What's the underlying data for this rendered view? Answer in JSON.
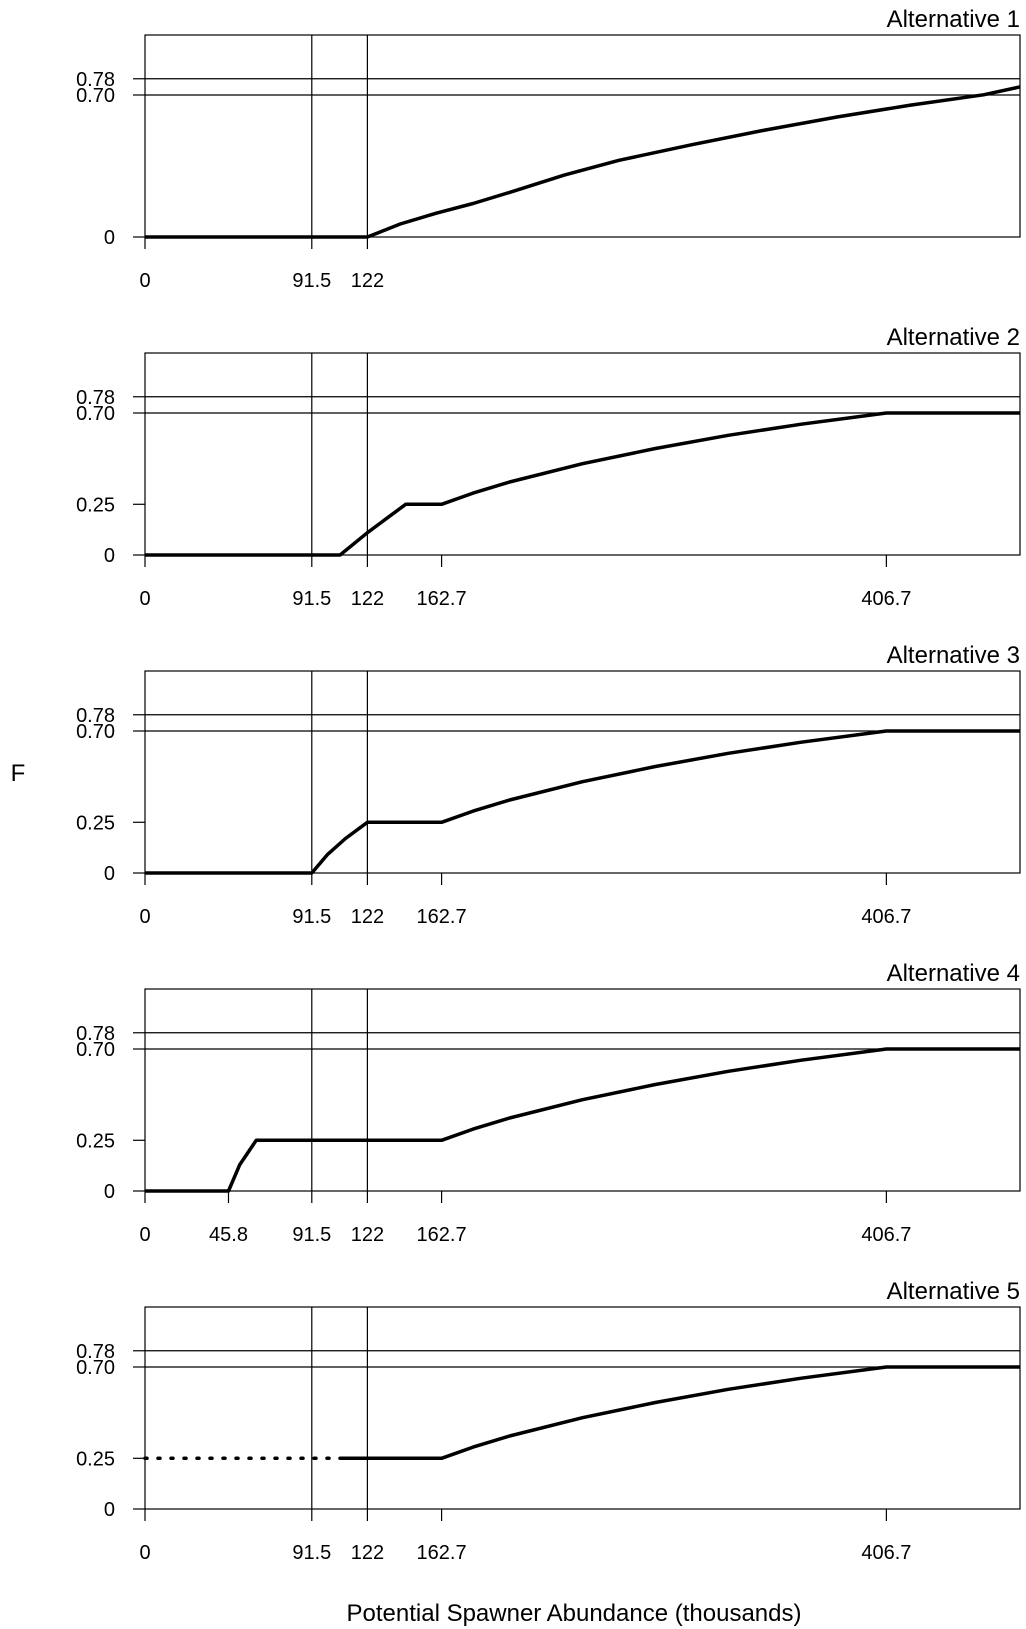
{
  "y_axis_label": "F",
  "x_axis_label": "Potential Spawner Abundance (thousands)",
  "chart_data": [
    {
      "type": "line",
      "title": "Alternative 1",
      "xlabel": "Potential Spawner Abundance (thousands)",
      "ylabel": "F",
      "xlim": [
        0,
        480
      ],
      "ylim": [
        0,
        0.8
      ],
      "x_ticks": [
        0,
        91.5,
        122
      ],
      "x_tick_labels": [
        "0",
        "91.5",
        "122"
      ],
      "y_ticks": [
        0,
        0.7,
        0.78
      ],
      "y_tick_labels": [
        "0",
        "0.70",
        "0.78"
      ],
      "reference_lines": {
        "vertical": [
          91.5,
          122
        ],
        "horizontal": [
          0.7,
          0.78
        ]
      },
      "series": [
        {
          "style": "solid",
          "x": [
            0,
            122,
            140,
            160,
            180,
            200,
            230,
            260,
            300,
            340,
            380,
            420,
            460,
            480
          ],
          "y": [
            0,
            0,
            0.064,
            0.118,
            0.165,
            0.22,
            0.305,
            0.378,
            0.455,
            0.527,
            0.592,
            0.65,
            0.701,
            0.74
          ]
        }
      ]
    },
    {
      "type": "line",
      "title": "Alternative 2",
      "xlabel": "Potential Spawner Abundance (thousands)",
      "ylabel": "F",
      "xlim": [
        0,
        480
      ],
      "ylim": [
        0,
        0.8
      ],
      "x_ticks": [
        0,
        91.5,
        122,
        162.7,
        406.7
      ],
      "x_tick_labels": [
        "0",
        "91.5",
        "122",
        "162.7",
        "406.7"
      ],
      "y_ticks": [
        0,
        0.25,
        0.7,
        0.78
      ],
      "y_tick_labels": [
        "0",
        "0.25",
        "0.70",
        "0.78"
      ],
      "reference_lines": {
        "vertical": [
          91.5,
          122
        ],
        "horizontal": [
          0.7,
          0.78
        ]
      },
      "series": [
        {
          "style": "solid",
          "x": [
            0,
            107,
            122,
            143,
            162.7,
            180,
            200,
            240,
            280,
            320,
            360,
            406.7,
            480
          ],
          "y": [
            0,
            0,
            0.11,
            0.25,
            0.25,
            0.305,
            0.36,
            0.45,
            0.525,
            0.59,
            0.645,
            0.7,
            0.7
          ]
        }
      ]
    },
    {
      "type": "line",
      "title": "Alternative 3",
      "xlabel": "Potential Spawner Abundance (thousands)",
      "ylabel": "F",
      "xlim": [
        0,
        480
      ],
      "ylim": [
        0,
        0.8
      ],
      "x_ticks": [
        0,
        91.5,
        122,
        162.7,
        406.7
      ],
      "x_tick_labels": [
        "0",
        "91.5",
        "122",
        "162.7",
        "406.7"
      ],
      "y_ticks": [
        0,
        0.25,
        0.7,
        0.78
      ],
      "y_tick_labels": [
        "0",
        "0.25",
        "0.70",
        "0.78"
      ],
      "reference_lines": {
        "vertical": [
          91.5,
          122
        ],
        "horizontal": [
          0.7,
          0.78
        ]
      },
      "series": [
        {
          "style": "solid",
          "x": [
            0,
            91.5,
            100,
            110,
            122,
            162.7,
            180,
            200,
            240,
            280,
            320,
            360,
            406.7,
            480
          ],
          "y": [
            0,
            0,
            0.09,
            0.17,
            0.25,
            0.25,
            0.305,
            0.36,
            0.45,
            0.525,
            0.59,
            0.645,
            0.7,
            0.7
          ]
        }
      ]
    },
    {
      "type": "line",
      "title": "Alternative 4",
      "xlabel": "Potential Spawner Abundance (thousands)",
      "ylabel": "F",
      "xlim": [
        0,
        480
      ],
      "ylim": [
        0,
        0.8
      ],
      "x_ticks": [
        0,
        45.8,
        91.5,
        122,
        162.7,
        406.7
      ],
      "x_tick_labels": [
        "0",
        "45.8",
        "91.5",
        "122",
        "162.7",
        "406.7"
      ],
      "y_ticks": [
        0,
        0.25,
        0.7,
        0.78
      ],
      "y_tick_labels": [
        "0",
        "0.25",
        "0.70",
        "0.78"
      ],
      "reference_lines": {
        "vertical": [
          91.5,
          122
        ],
        "horizontal": [
          0.7,
          0.78
        ]
      },
      "series": [
        {
          "style": "solid",
          "x": [
            0,
            45.8,
            52,
            61,
            162.7,
            180,
            200,
            240,
            280,
            320,
            360,
            406.7,
            480
          ],
          "y": [
            0,
            0,
            0.13,
            0.25,
            0.25,
            0.305,
            0.36,
            0.45,
            0.525,
            0.59,
            0.645,
            0.7,
            0.7
          ]
        }
      ]
    },
    {
      "type": "line",
      "title": "Alternative 5",
      "xlabel": "Potential Spawner Abundance (thousands)",
      "ylabel": "F",
      "xlim": [
        0,
        480
      ],
      "ylim": [
        0,
        0.8
      ],
      "x_ticks": [
        0,
        91.5,
        122,
        162.7,
        406.7
      ],
      "x_tick_labels": [
        "0",
        "91.5",
        "122",
        "162.7",
        "406.7"
      ],
      "y_ticks": [
        0,
        0.25,
        0.7,
        0.78
      ],
      "y_tick_labels": [
        "0",
        "0.25",
        "0.70",
        "0.78"
      ],
      "reference_lines": {
        "vertical": [
          91.5,
          122
        ],
        "horizontal": [
          0.7,
          0.78
        ]
      },
      "series": [
        {
          "style": "dotted",
          "x": [
            0,
            107
          ],
          "y": [
            0.25,
            0.25
          ]
        },
        {
          "style": "solid",
          "x": [
            107,
            162.7,
            180,
            200,
            240,
            280,
            320,
            360,
            406.7,
            480
          ],
          "y": [
            0.25,
            0.25,
            0.305,
            0.36,
            0.45,
            0.525,
            0.59,
            0.645,
            0.7,
            0.7
          ]
        }
      ]
    }
  ]
}
